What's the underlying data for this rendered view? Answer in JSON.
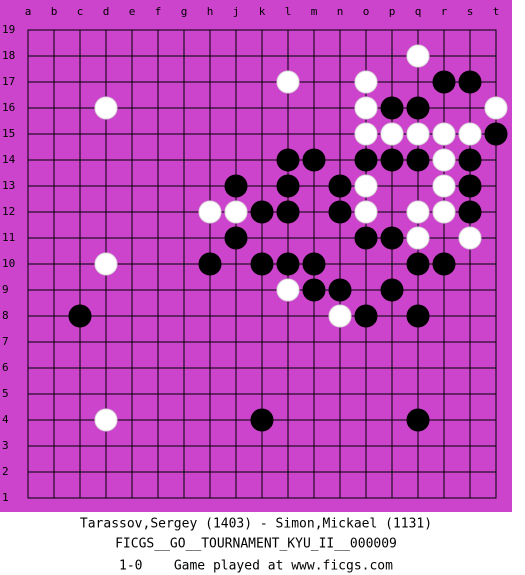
{
  "board": {
    "columns": [
      "a",
      "b",
      "c",
      "d",
      "e",
      "f",
      "g",
      "h",
      "j",
      "k",
      "l",
      "m",
      "n",
      "o",
      "p",
      "q",
      "r",
      "s",
      "t"
    ],
    "rows": [
      19,
      18,
      17,
      16,
      15,
      14,
      13,
      12,
      11,
      10,
      9,
      8,
      7,
      6,
      5,
      4,
      3,
      2,
      1
    ],
    "stones": [
      {
        "color": "white",
        "x": "q",
        "y": 18
      },
      {
        "color": "white",
        "x": "l",
        "y": 17
      },
      {
        "color": "white",
        "x": "o",
        "y": 17
      },
      {
        "color": "black",
        "x": "r",
        "y": 17
      },
      {
        "color": "black",
        "x": "s",
        "y": 17
      },
      {
        "color": "white",
        "x": "d",
        "y": 16
      },
      {
        "color": "white",
        "x": "o",
        "y": 16
      },
      {
        "color": "black",
        "x": "p",
        "y": 16
      },
      {
        "color": "black",
        "x": "q",
        "y": 16
      },
      {
        "color": "white",
        "x": "t",
        "y": 16
      },
      {
        "color": "white",
        "x": "o",
        "y": 15
      },
      {
        "color": "white",
        "x": "p",
        "y": 15
      },
      {
        "color": "white",
        "x": "q",
        "y": 15
      },
      {
        "color": "white",
        "x": "r",
        "y": 15
      },
      {
        "color": "white",
        "x": "s",
        "y": 15
      },
      {
        "color": "black",
        "x": "t",
        "y": 15
      },
      {
        "color": "black",
        "x": "l",
        "y": 14
      },
      {
        "color": "black",
        "x": "m",
        "y": 14
      },
      {
        "color": "black",
        "x": "o",
        "y": 14
      },
      {
        "color": "black",
        "x": "p",
        "y": 14
      },
      {
        "color": "black",
        "x": "q",
        "y": 14
      },
      {
        "color": "white",
        "x": "r",
        "y": 14
      },
      {
        "color": "black",
        "x": "s",
        "y": 14
      },
      {
        "color": "black",
        "x": "j",
        "y": 13
      },
      {
        "color": "black",
        "x": "l",
        "y": 13
      },
      {
        "color": "black",
        "x": "n",
        "y": 13
      },
      {
        "color": "white",
        "x": "o",
        "y": 13
      },
      {
        "color": "white",
        "x": "r",
        "y": 13
      },
      {
        "color": "black",
        "x": "s",
        "y": 13
      },
      {
        "color": "white",
        "x": "h",
        "y": 12
      },
      {
        "color": "white",
        "x": "j",
        "y": 12
      },
      {
        "color": "black",
        "x": "k",
        "y": 12
      },
      {
        "color": "black",
        "x": "l",
        "y": 12
      },
      {
        "color": "black",
        "x": "n",
        "y": 12
      },
      {
        "color": "white",
        "x": "o",
        "y": 12
      },
      {
        "color": "white",
        "x": "q",
        "y": 12
      },
      {
        "color": "white",
        "x": "r",
        "y": 12
      },
      {
        "color": "black",
        "x": "s",
        "y": 12
      },
      {
        "color": "black",
        "x": "j",
        "y": 11
      },
      {
        "color": "black",
        "x": "o",
        "y": 11
      },
      {
        "color": "black",
        "x": "p",
        "y": 11
      },
      {
        "color": "white",
        "x": "q",
        "y": 11
      },
      {
        "color": "white",
        "x": "s",
        "y": 11
      },
      {
        "color": "white",
        "x": "d",
        "y": 10
      },
      {
        "color": "black",
        "x": "h",
        "y": 10
      },
      {
        "color": "black",
        "x": "k",
        "y": 10
      },
      {
        "color": "black",
        "x": "l",
        "y": 10
      },
      {
        "color": "black",
        "x": "m",
        "y": 10
      },
      {
        "color": "black",
        "x": "q",
        "y": 10
      },
      {
        "color": "black",
        "x": "r",
        "y": 10
      },
      {
        "color": "white",
        "x": "l",
        "y": 9
      },
      {
        "color": "black",
        "x": "m",
        "y": 9
      },
      {
        "color": "black",
        "x": "n",
        "y": 9
      },
      {
        "color": "black",
        "x": "p",
        "y": 9
      },
      {
        "color": "black",
        "x": "c",
        "y": 8
      },
      {
        "color": "white",
        "x": "n",
        "y": 8
      },
      {
        "color": "black",
        "x": "o",
        "y": 8
      },
      {
        "color": "black",
        "x": "q",
        "y": 8
      },
      {
        "color": "white",
        "x": "d",
        "y": 4
      },
      {
        "color": "black",
        "x": "k",
        "y": 4
      },
      {
        "color": "black",
        "x": "q",
        "y": 4
      }
    ]
  },
  "caption": {
    "players": "Tarassov,Sergey (1403) - Simon,Mickael (1131)",
    "event": "FICGS__GO__TOURNAMENT_KYU_II__000009",
    "result": "1-0    Game played at www.ficgs.com"
  }
}
